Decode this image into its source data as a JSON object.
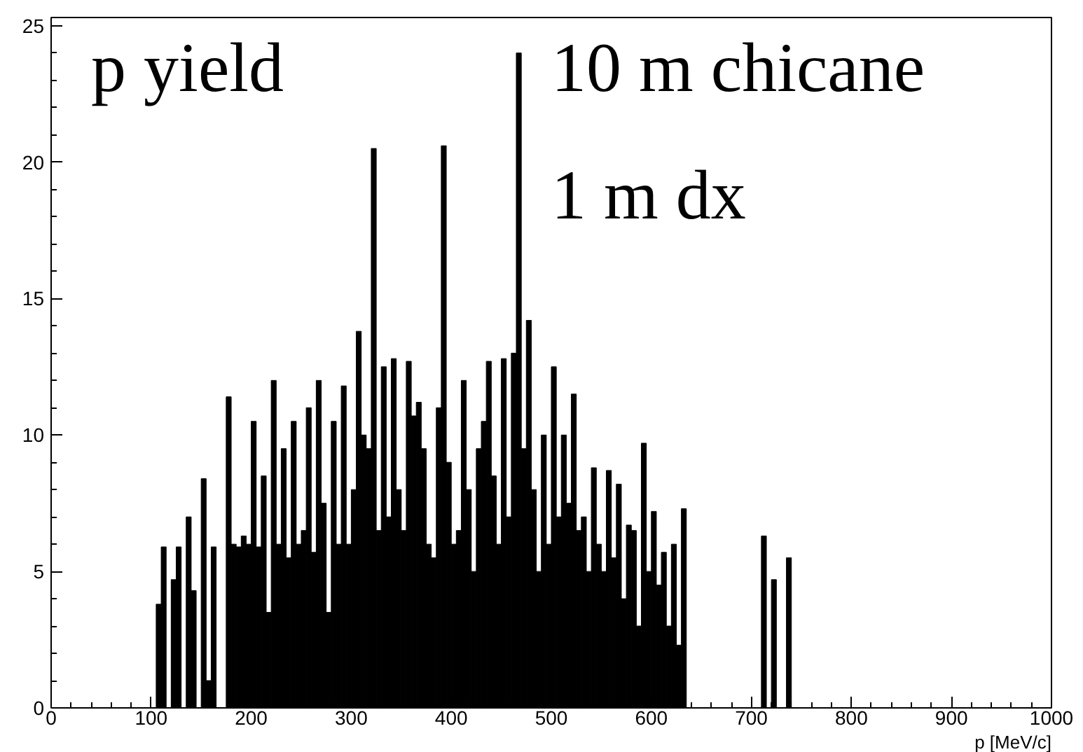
{
  "chart_data": {
    "type": "histogram",
    "xlabel": "p [MeV/c]",
    "annotations": [
      "p yield",
      "10 m chicane",
      "1 m dx"
    ],
    "bins": [
      0,
      100,
      105,
      110,
      115,
      120,
      125,
      130,
      135,
      140,
      145,
      150,
      155,
      160,
      165,
      170,
      175,
      180,
      185,
      190,
      195,
      200,
      205,
      210,
      215,
      220,
      225,
      230,
      235,
      240,
      245,
      250,
      255,
      260,
      265,
      270,
      275,
      280,
      285,
      290,
      295,
      300,
      305,
      310,
      315,
      320,
      325,
      330,
      335,
      340,
      345,
      350,
      355,
      360,
      365,
      370,
      375,
      380,
      385,
      390,
      395,
      400,
      405,
      410,
      415,
      420,
      425,
      430,
      435,
      440,
      445,
      450,
      455,
      460,
      465,
      470,
      475,
      480,
      485,
      490,
      495,
      500,
      505,
      510,
      515,
      520,
      525,
      530,
      535,
      540,
      545,
      550,
      555,
      560,
      565,
      570,
      575,
      580,
      585,
      590,
      595,
      600,
      605,
      610,
      615,
      620,
      625,
      630,
      635,
      640,
      710,
      715,
      720,
      725,
      735,
      740,
      1000
    ],
    "values": [
      0,
      0,
      3.8,
      5.9,
      0,
      4.7,
      5.9,
      0,
      7,
      4.3,
      0,
      8.4,
      1,
      5.9,
      0,
      0,
      11.4,
      6,
      5.9,
      6.3,
      6,
      10.5,
      5.9,
      8.5,
      3.5,
      12,
      6,
      9.5,
      5.5,
      10.5,
      6,
      6.5,
      11,
      5.7,
      12,
      7.5,
      3.5,
      10.5,
      6,
      11.8,
      6,
      8,
      13.8,
      10,
      9.5,
      20.5,
      6.5,
      12.5,
      7,
      12.8,
      8,
      6.5,
      12.7,
      10.7,
      11.2,
      9.5,
      6,
      5.5,
      11,
      20.6,
      9,
      6,
      6.5,
      12,
      8,
      5,
      9.5,
      10.5,
      12.7,
      8.5,
      6,
      12.8,
      7,
      13,
      24,
      9.5,
      14.2,
      8,
      5,
      10,
      6,
      12.5,
      7,
      10,
      7.5,
      11.5,
      6.5,
      7,
      5,
      8.8,
      6,
      5,
      8.7,
      5.5,
      8.2,
      4,
      6.7,
      6.5,
      3,
      9.7,
      5,
      7.2,
      4.5,
      5.7,
      3,
      6,
      2.3,
      7.3,
      0,
      0,
      6.3,
      0,
      4.7,
      0,
      5.5,
      0
    ],
    "color": "#000000",
    "xlim": [
      0,
      1000
    ],
    "ylim": [
      0,
      25.3
    ],
    "xticks": [
      0,
      100,
      200,
      300,
      400,
      500,
      600,
      700,
      800,
      900,
      1000
    ],
    "yticks": [
      0,
      5,
      10,
      15,
      20,
      25
    ],
    "grid": false
  }
}
